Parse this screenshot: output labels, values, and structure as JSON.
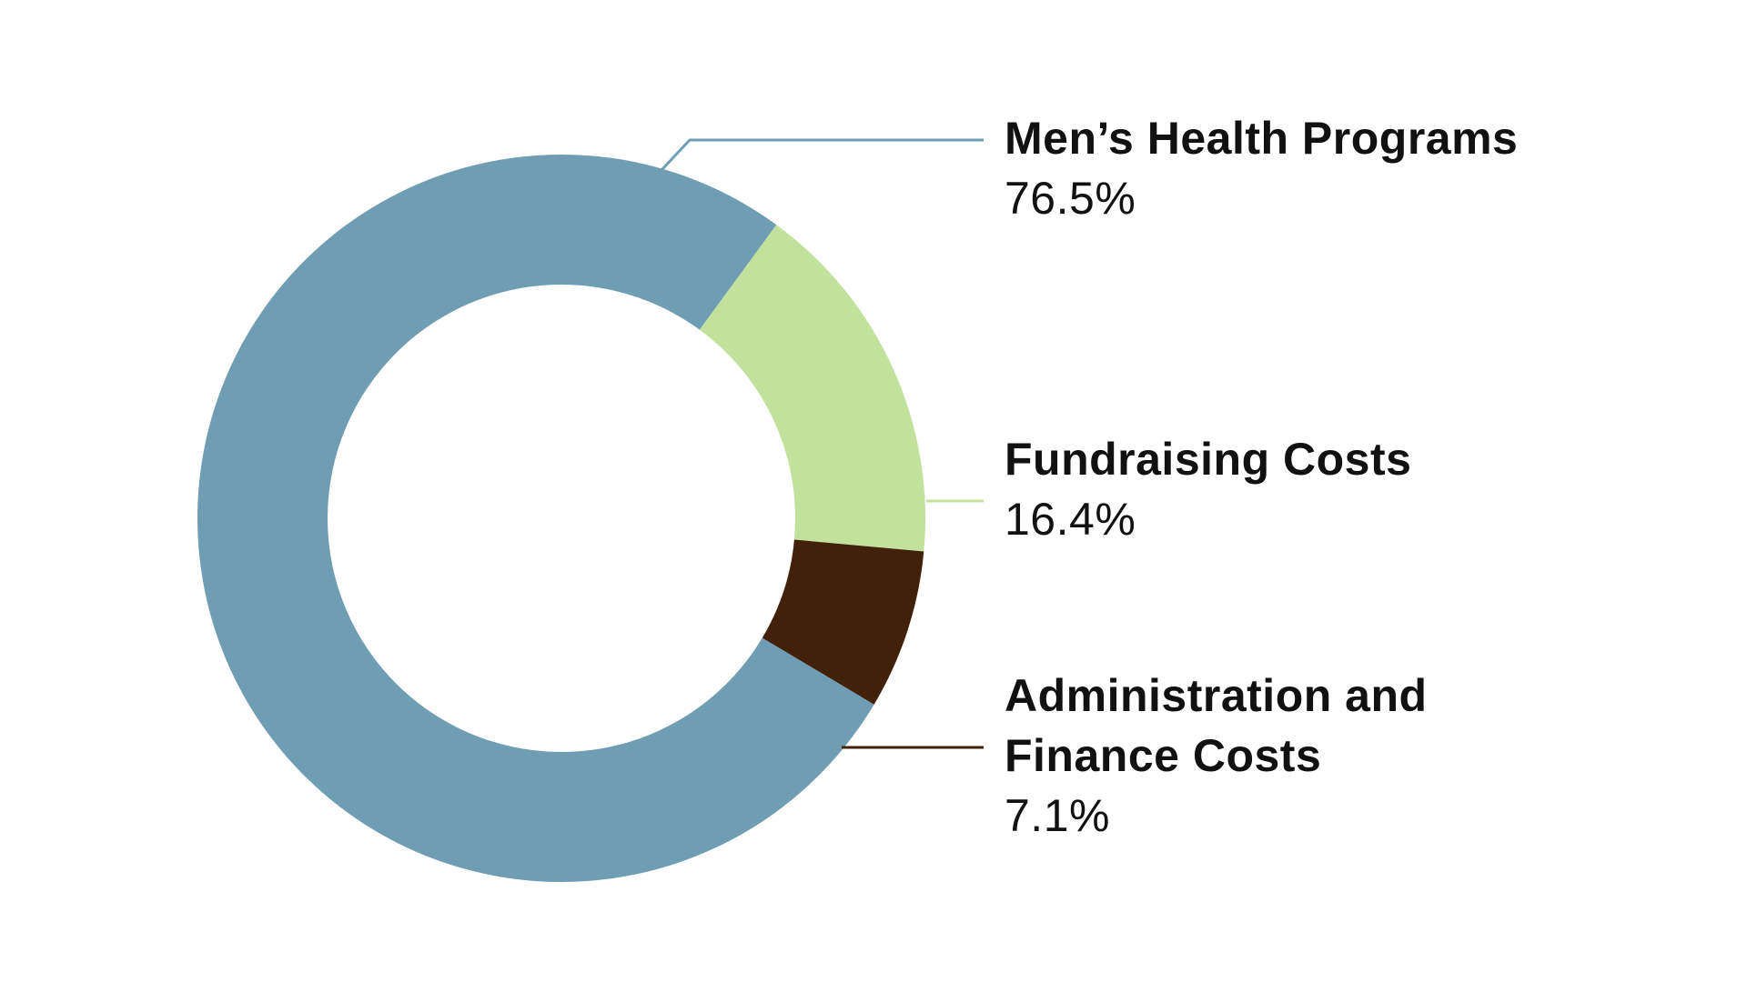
{
  "chart_data": {
    "type": "pie",
    "variant": "donut",
    "title": "",
    "legend": "labels-right-with-leader-lines",
    "slices": [
      {
        "label": "Men’s Health Programs",
        "value": 76.5,
        "value_label": "76.5%",
        "color": "#6f9db3"
      },
      {
        "label": "Fundraising Costs",
        "value": 16.4,
        "value_label": "16.4%",
        "color": "#c2e19c"
      },
      {
        "label": "Administration and Finance Costs",
        "value": 7.1,
        "value_label": "7.1%",
        "color": "#412109"
      }
    ]
  }
}
